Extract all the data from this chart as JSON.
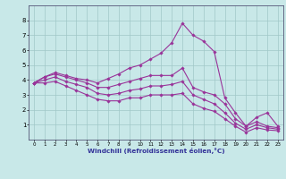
{
  "xlabel": "Windchill (Refroidissement éolien,°C)",
  "ylabel": "",
  "bg_color": "#c8e8e8",
  "line_color": "#993399",
  "marker": "D",
  "marker_size": 1.8,
  "linewidth": 0.8,
  "xlim": [
    -0.5,
    23.5
  ],
  "ylim": [
    0,
    9
  ],
  "xticks": [
    0,
    1,
    2,
    3,
    4,
    5,
    6,
    7,
    8,
    9,
    10,
    11,
    12,
    13,
    14,
    15,
    16,
    17,
    18,
    19,
    20,
    21,
    22,
    23
  ],
  "yticks": [
    1,
    2,
    3,
    4,
    5,
    6,
    7,
    8
  ],
  "grid_color": "#a0c8c8",
  "series": [
    [
      3.8,
      4.2,
      4.5,
      4.3,
      4.1,
      4.0,
      3.8,
      4.1,
      4.4,
      4.8,
      5.0,
      5.4,
      5.8,
      6.5,
      7.8,
      7.0,
      6.6,
      5.9,
      2.8,
      1.8,
      0.9,
      1.5,
      1.8,
      0.9
    ],
    [
      3.8,
      4.2,
      4.4,
      4.2,
      4.0,
      3.8,
      3.5,
      3.5,
      3.7,
      3.9,
      4.1,
      4.3,
      4.3,
      4.3,
      4.8,
      3.5,
      3.2,
      3.0,
      2.4,
      1.4,
      0.9,
      1.2,
      0.9,
      0.8
    ],
    [
      3.8,
      4.0,
      4.2,
      3.9,
      3.7,
      3.5,
      3.1,
      3.0,
      3.1,
      3.3,
      3.4,
      3.6,
      3.6,
      3.7,
      3.9,
      3.0,
      2.7,
      2.4,
      1.8,
      1.1,
      0.7,
      1.0,
      0.8,
      0.7
    ],
    [
      3.8,
      3.8,
      3.9,
      3.6,
      3.3,
      3.0,
      2.7,
      2.6,
      2.6,
      2.8,
      2.8,
      3.0,
      3.0,
      3.0,
      3.1,
      2.4,
      2.1,
      1.9,
      1.4,
      0.9,
      0.5,
      0.8,
      0.65,
      0.6
    ]
  ]
}
